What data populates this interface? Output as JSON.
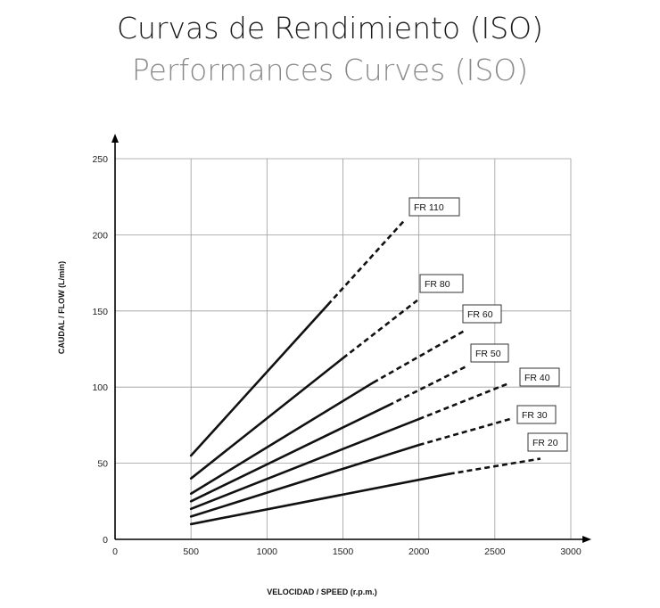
{
  "header": {
    "title": "Curvas de Rendimiento (ISO)",
    "subtitle": "Performances Curves (ISO)"
  },
  "chart_data": {
    "type": "line",
    "title": "Curvas de Rendimiento (ISO)",
    "subtitle": "Performances Curves (ISO)",
    "xlabel": "VELOCIDAD / SPEED (r.p.m.)",
    "ylabel": "CAUDAL / FLOW (L/min)",
    "xlim": [
      0,
      3000
    ],
    "ylim": [
      0,
      250
    ],
    "xticks": [
      0,
      500,
      1000,
      1500,
      2000,
      2500,
      3000
    ],
    "yticks": [
      0,
      50,
      100,
      150,
      200,
      250
    ],
    "grid": true,
    "series": [
      {
        "name": "FR 110",
        "x": [
          500,
          1400,
          1900
        ],
        "y": [
          55,
          154,
          209
        ],
        "solid_until": 1400
      },
      {
        "name": "FR 80",
        "x": [
          500,
          1500,
          1990
        ],
        "y": [
          40,
          119,
          157
        ],
        "solid_until": 1500
      },
      {
        "name": "FR 60",
        "x": [
          500,
          1700,
          2300
        ],
        "y": [
          30,
          103,
          137
        ],
        "solid_until": 1700
      },
      {
        "name": "FR 50",
        "x": [
          500,
          1800,
          2320
        ],
        "y": [
          25,
          88,
          114
        ],
        "solid_until": 1800
      },
      {
        "name": "FR 40",
        "x": [
          500,
          2000,
          2580
        ],
        "y": [
          20,
          79,
          102
        ],
        "solid_until": 2000
      },
      {
        "name": "FR 30",
        "x": [
          500,
          2000,
          2600
        ],
        "y": [
          15,
          62,
          79
        ],
        "solid_until": 2000
      },
      {
        "name": "FR 20",
        "x": [
          500,
          2200,
          2800
        ],
        "y": [
          10,
          43,
          53
        ],
        "solid_until": 2200
      }
    ]
  }
}
